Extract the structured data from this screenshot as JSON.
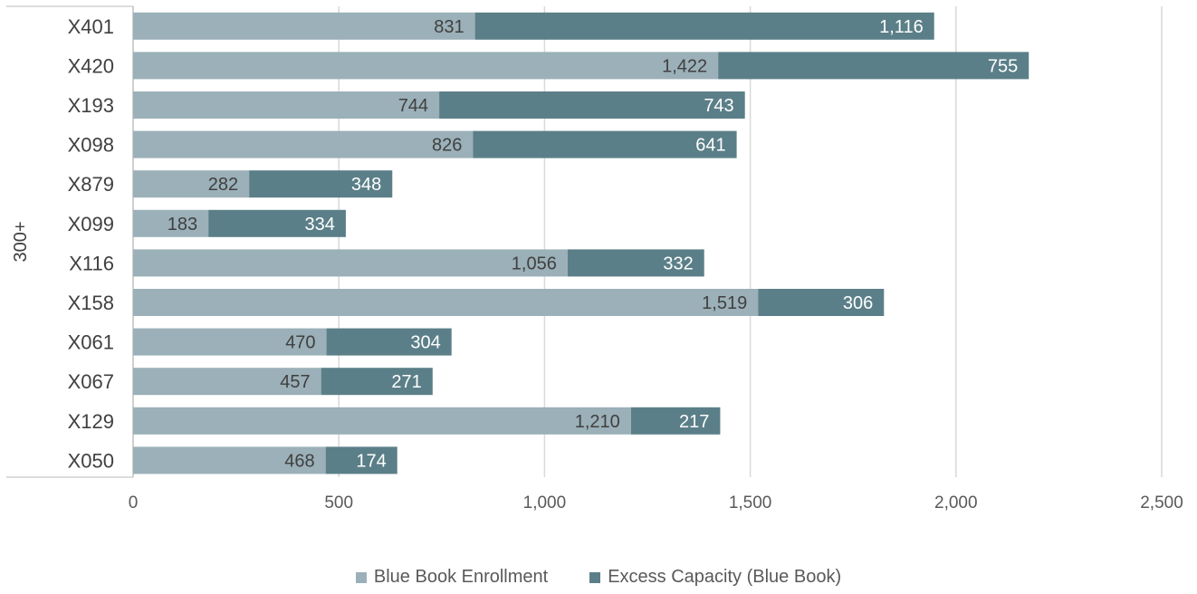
{
  "chart_data": {
    "type": "bar",
    "orientation": "horizontal",
    "stacked": true,
    "group_label": "300+",
    "categories": [
      "X401",
      "X420",
      "X193",
      "X098",
      "X879",
      "X099",
      "X116",
      "X158",
      "X061",
      "X067",
      "X129",
      "X050"
    ],
    "series": [
      {
        "name": "Blue Book Enrollment",
        "color": "#9bb0b8",
        "values": [
          831,
          1422,
          744,
          826,
          282,
          183,
          1056,
          1519,
          470,
          457,
          1210,
          468
        ],
        "labels": [
          "831",
          "1,422",
          "744",
          "826",
          "282",
          "183",
          "1,056",
          "1,519",
          "470",
          "457",
          "1,210",
          "468"
        ]
      },
      {
        "name": "Excess Capacity (Blue Book)",
        "color": "#5b7f88",
        "values": [
          1116,
          755,
          743,
          641,
          348,
          334,
          332,
          306,
          304,
          271,
          217,
          174
        ],
        "labels": [
          "1,116",
          "755",
          "743",
          "641",
          "348",
          "334",
          "332",
          "306",
          "304",
          "271",
          "217",
          "174"
        ]
      }
    ],
    "xlim": [
      0,
      2500
    ],
    "x_ticks": [
      0,
      500,
      1000,
      1500,
      2000,
      2500
    ],
    "x_tick_labels": [
      "0",
      "500",
      "1,000",
      "1,500",
      "2,000",
      "2,500"
    ],
    "grid": "vertical",
    "legend_position": "bottom"
  }
}
